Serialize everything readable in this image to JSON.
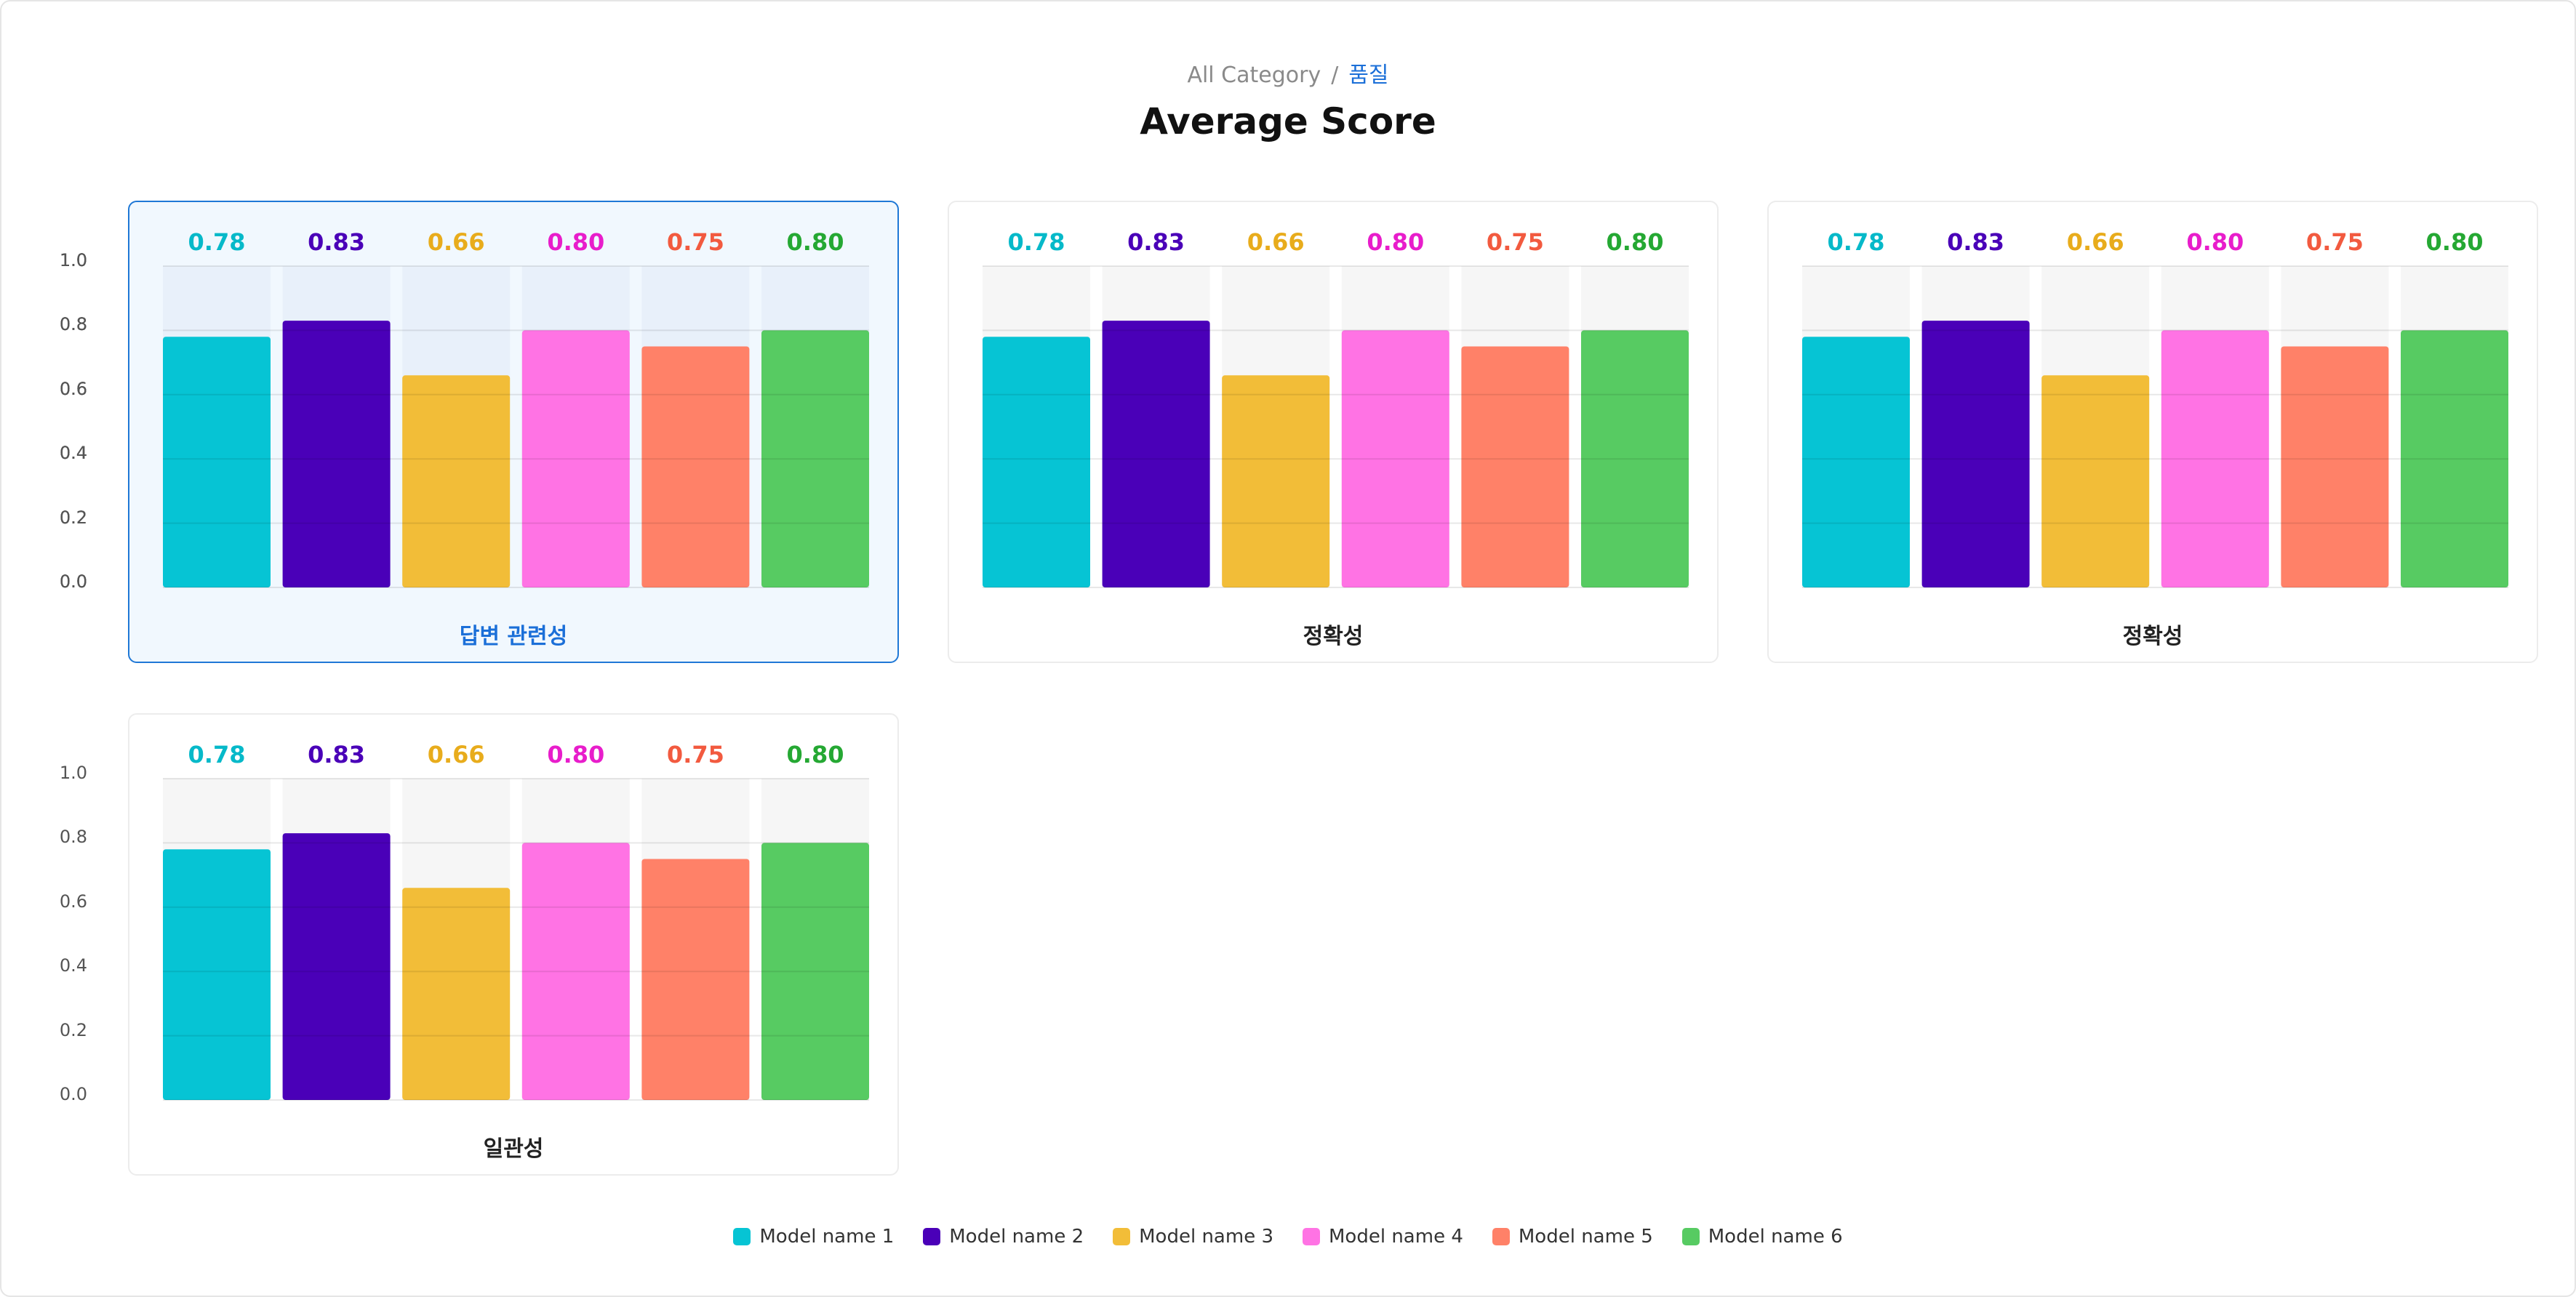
{
  "breadcrumb": {
    "root": "All Category",
    "separator": "/",
    "current": "품질"
  },
  "page_title": "Average Score",
  "models": [
    {
      "name": "Model name 1",
      "color": "#06c4d4",
      "label_color": "#06b9c9"
    },
    {
      "name": "Model name 2",
      "color": "#4a00b8",
      "label_color": "#4a00b8"
    },
    {
      "name": "Model name 3",
      "color": "#f2bd38",
      "label_color": "#e8ac1c"
    },
    {
      "name": "Model name 4",
      "color": "#ff73e4",
      "label_color": "#e81dcb"
    },
    {
      "name": "Model name 5",
      "color": "#ff8168",
      "label_color": "#f25a3f"
    },
    {
      "name": "Model name 6",
      "color": "#57cb62",
      "label_color": "#25a833"
    }
  ],
  "chart_data": [
    {
      "type": "bar",
      "label": "답변 관련성",
      "selected": true,
      "categories": [
        "Model name 1",
        "Model name 2",
        "Model name 3",
        "Model name 4",
        "Model name 5",
        "Model name 6"
      ],
      "values": [
        0.78,
        0.83,
        0.66,
        0.8,
        0.75,
        0.8
      ],
      "value_labels": [
        "0.78",
        "0.83",
        "0.66",
        "0.80",
        "0.75",
        "0.80"
      ],
      "ylim": [
        0,
        1.0
      ],
      "yticks": [
        "1.0",
        "0.8",
        "0.6",
        "0.4",
        "0.2",
        "0.0"
      ],
      "grid": true
    },
    {
      "type": "bar",
      "label": "정확성",
      "selected": false,
      "categories": [
        "Model name 1",
        "Model name 2",
        "Model name 3",
        "Model name 4",
        "Model name 5",
        "Model name 6"
      ],
      "values": [
        0.78,
        0.83,
        0.66,
        0.8,
        0.75,
        0.8
      ],
      "value_labels": [
        "0.78",
        "0.83",
        "0.66",
        "0.80",
        "0.75",
        "0.80"
      ],
      "ylim": [
        0,
        1.0
      ],
      "yticks": [
        "1.0",
        "0.8",
        "0.6",
        "0.4",
        "0.2",
        "0.0"
      ],
      "grid": true
    },
    {
      "type": "bar",
      "label": "정확성",
      "selected": false,
      "categories": [
        "Model name 1",
        "Model name 2",
        "Model name 3",
        "Model name 4",
        "Model name 5",
        "Model name 6"
      ],
      "values": [
        0.78,
        0.83,
        0.66,
        0.8,
        0.75,
        0.8
      ],
      "value_labels": [
        "0.78",
        "0.83",
        "0.66",
        "0.80",
        "0.75",
        "0.80"
      ],
      "ylim": [
        0,
        1.0
      ],
      "yticks": [
        "1.0",
        "0.8",
        "0.6",
        "0.4",
        "0.2",
        "0.0"
      ],
      "grid": true
    },
    {
      "type": "bar",
      "label": "일관성",
      "selected": false,
      "categories": [
        "Model name 1",
        "Model name 2",
        "Model name 3",
        "Model name 4",
        "Model name 5",
        "Model name 6"
      ],
      "values": [
        0.78,
        0.83,
        0.66,
        0.8,
        0.75,
        0.8
      ],
      "value_labels": [
        "0.78",
        "0.83",
        "0.66",
        "0.80",
        "0.75",
        "0.80"
      ],
      "ylim": [
        0,
        1.0
      ],
      "yticks": [
        "1.0",
        "0.8",
        "0.6",
        "0.4",
        "0.2",
        "0.0"
      ],
      "grid": true
    }
  ],
  "legend_placement": "bottom-center"
}
